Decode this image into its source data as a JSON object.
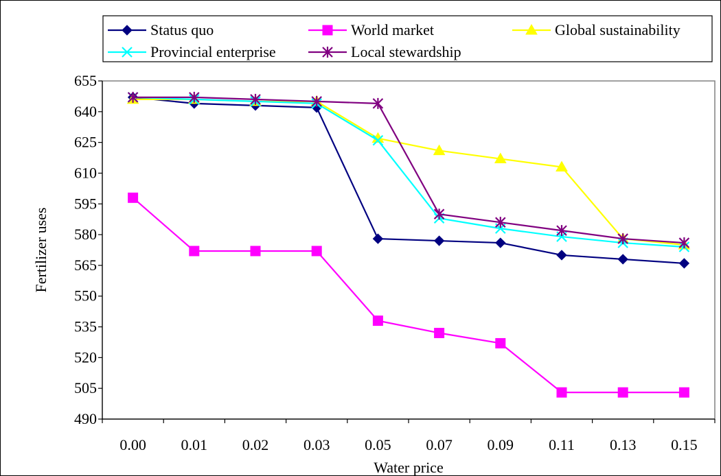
{
  "chart_data": {
    "type": "line",
    "title": "",
    "xlabel": "Water price",
    "ylabel": "Fertilizer uses",
    "categories": [
      "0.00",
      "0.01",
      "0.02",
      "0.03",
      "0.05",
      "0.07",
      "0.09",
      "0.11",
      "0.13",
      "0.15"
    ],
    "ylim": [
      490,
      655
    ],
    "yticks": [
      490,
      505,
      520,
      535,
      550,
      565,
      580,
      595,
      610,
      625,
      640,
      655
    ],
    "grid": false,
    "legend_position": "top",
    "series": [
      {
        "name": "Status quo",
        "color": "#000080",
        "marker": "diamond",
        "values": [
          647,
          644,
          643,
          642,
          578,
          577,
          576,
          570,
          568,
          566
        ]
      },
      {
        "name": "World market",
        "color": "#ff00ff",
        "marker": "square",
        "values": [
          598,
          572,
          572,
          572,
          538,
          532,
          527,
          503,
          503,
          503
        ]
      },
      {
        "name": "Global sustainability",
        "color": "#ffff00",
        "marker": "triangle",
        "values": [
          646,
          646,
          645,
          645,
          627,
          621,
          617,
          613,
          578,
          575
        ]
      },
      {
        "name": "Provincial enterprise",
        "color": "#00ffff",
        "marker": "x",
        "values": [
          647,
          646,
          645,
          644,
          626,
          588,
          583,
          579,
          576,
          574
        ]
      },
      {
        "name": "Local stewardship",
        "color": "#800080",
        "marker": "star",
        "values": [
          647,
          647,
          646,
          645,
          644,
          590,
          586,
          582,
          578,
          576
        ]
      }
    ]
  }
}
